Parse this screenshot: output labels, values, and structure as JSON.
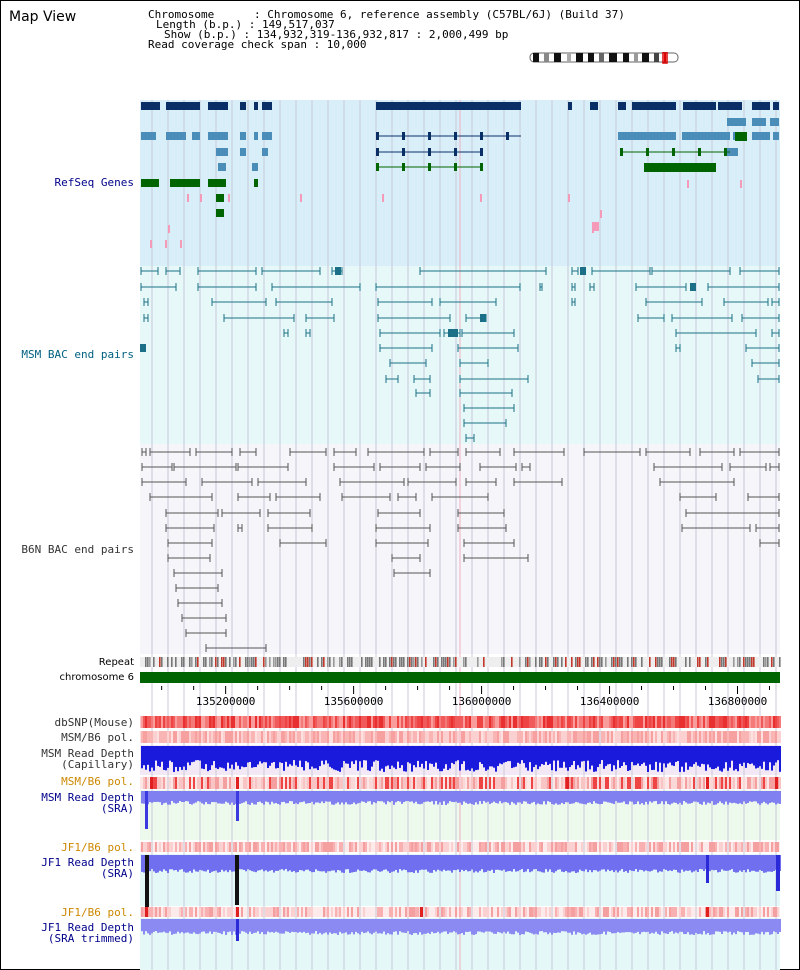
{
  "page": {
    "title": "Map View"
  },
  "info": {
    "chromosome": "Chromosome      : Chromosome 6, reference assembly (C57BL/6J) (Build 37)",
    "length": "Length (b.p.) : 149,517,037",
    "show": "Show (b.p.) : 134,932,319-136,932,817 : 2,000,499 bp",
    "coverage": "Read coverage check span : 10,000"
  },
  "tracks": {
    "refseq": "RefSeq Genes",
    "msm_bac": "MSM BAC end pairs",
    "b6n_bac": "B6N BAC end pairs",
    "repeat": "Repeat",
    "chromosome": "chromosome 6",
    "dbsnp": "dbSNP(Mouse)",
    "msm_pol1": "MSM/B6 pol.",
    "msm_depth_cap_1": "MSM Read Depth",
    "msm_depth_cap_2": "(Capillary)",
    "msm_pol2": "MSM/B6 pol.",
    "msm_depth_sra_1": "MSM Read Depth",
    "msm_depth_sra_2": "(SRA)",
    "jf1_pol1": "JF1/B6 pol.",
    "jf1_depth_1": "JF1 Read Depth",
    "jf1_depth_2": "(SRA)",
    "jf1_pol2": "JF1/B6 pol.",
    "jf1_trim_1": "JF1 Read Depth",
    "jf1_trim_2": "(SRA trimmed)"
  },
  "axis": {
    "ticks": [
      "135200000",
      "135600000",
      "136000000",
      "136400000",
      "136800000"
    ],
    "range": [
      134932319,
      136932817
    ]
  },
  "colors": {
    "refseq_bg": "#d8eff9",
    "msm_bg": "#e6f8f8",
    "b6n_bg": "#f5f5fa",
    "msm_sra_bg": "#eef9ee",
    "jf1_bg": "#e4f8f8",
    "navy": "#0a2f66",
    "steel": "#4a8db8",
    "green": "#006400",
    "teal": "#1b6f86",
    "gray": "#555555",
    "blue_label": "#00008b",
    "orange_label": "#cc8800"
  }
}
